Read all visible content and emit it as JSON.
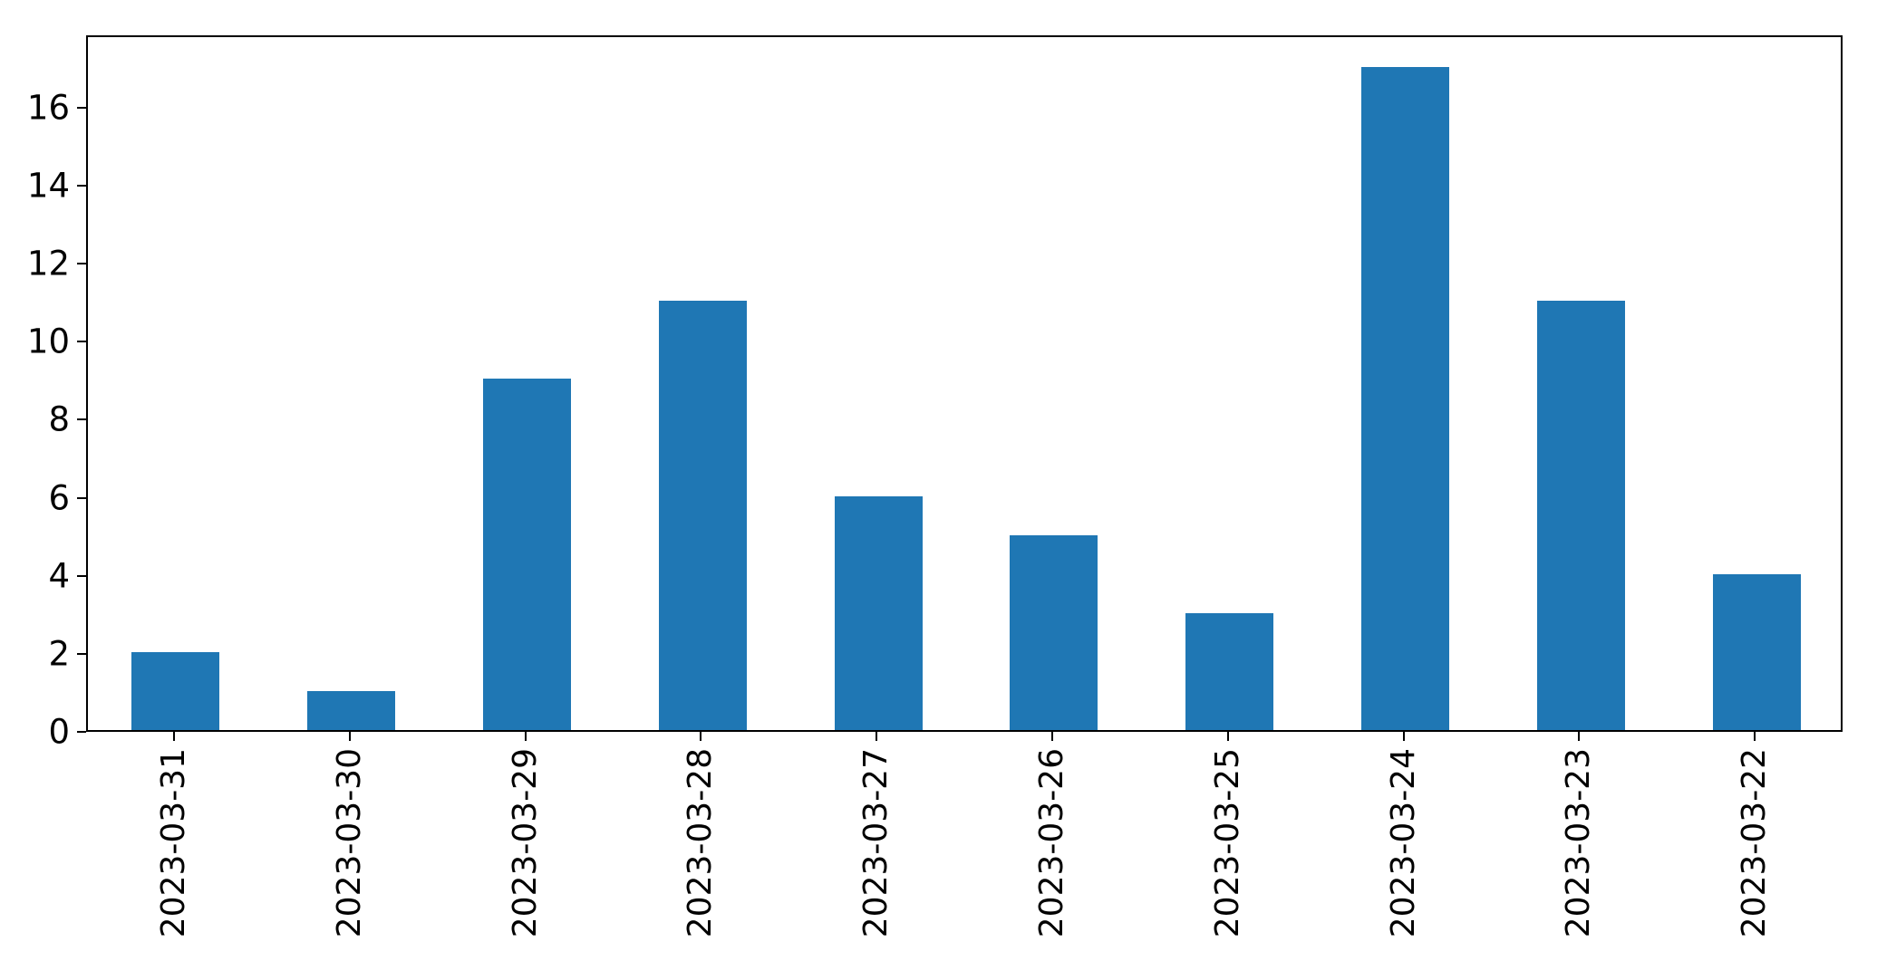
{
  "chart_data": {
    "type": "bar",
    "title": "",
    "xlabel": "",
    "ylabel": "",
    "categories": [
      "2023-03-31",
      "2023-03-30",
      "2023-03-29",
      "2023-03-28",
      "2023-03-27",
      "2023-03-26",
      "2023-03-25",
      "2023-03-24",
      "2023-03-23",
      "2023-03-22"
    ],
    "values": [
      2,
      1,
      9,
      11,
      6,
      5,
      3,
      17,
      11,
      4
    ],
    "yticks": [
      "0",
      "2",
      "4",
      "6",
      "8",
      "10",
      "12",
      "14",
      "16"
    ],
    "ylim": [
      0,
      17.85
    ],
    "bar_width_fraction": 0.5,
    "bar_color": "#1f77b4",
    "axis_color": "#000000",
    "background_color": "#ffffff",
    "grid": false,
    "legend": null,
    "x_label_rotation_degrees": 90
  }
}
